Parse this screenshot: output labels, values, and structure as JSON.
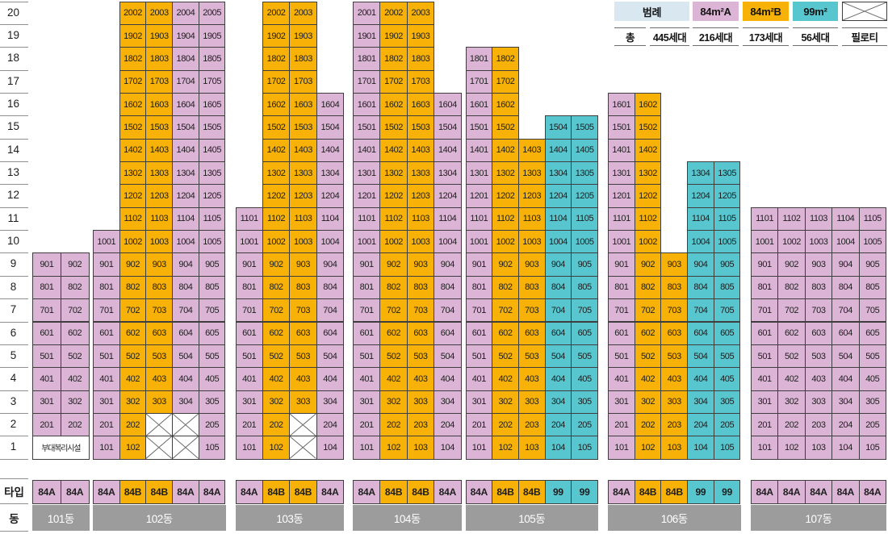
{
  "colors": {
    "type_84A": "#DCB5D6",
    "type_84B": "#F8B207",
    "type_99": "#58C6CF",
    "legend_header_bg": "#D9E7F1",
    "dong_bar_bg": "#9C9C9C",
    "grid_border": "#3E3E3E"
  },
  "legend": {
    "header_label": "범례",
    "total_label": "총",
    "total_value": "445세대",
    "items": [
      {
        "label": "84m²A",
        "type": "84A",
        "count": "216세대"
      },
      {
        "label": "84m²B",
        "type": "84B",
        "count": "173세대"
      },
      {
        "label": "99m²",
        "type": "99",
        "count": "56세대"
      },
      {
        "label": "",
        "type": "piloti",
        "count": "필로티"
      }
    ]
  },
  "floor_axis": [
    "20",
    "19",
    "18",
    "17",
    "16",
    "15",
    "14",
    "13",
    "12",
    "11",
    "10",
    "9",
    "8",
    "7",
    "6",
    "5",
    "4",
    "3",
    "2",
    "1"
  ],
  "row_labels": {
    "type": "타입",
    "dong": "동"
  },
  "buildings": [
    {
      "name": "101동",
      "ground_floor_label": "부대복리시설",
      "type_row": [
        "84A",
        "84A"
      ],
      "columns": [
        {
          "type": "84A",
          "from": 2,
          "units": [
            "201",
            "301",
            "401",
            "501",
            "601",
            "701",
            "801",
            "901"
          ]
        },
        {
          "type": "84A",
          "from": 2,
          "units": [
            "202",
            "302",
            "402",
            "502",
            "602",
            "702",
            "802",
            "902"
          ]
        }
      ]
    },
    {
      "name": "102동",
      "type_row": [
        "84A",
        "84B",
        "84B",
        "84A",
        "84A"
      ],
      "columns": [
        {
          "type": "84A",
          "from": 1,
          "units": [
            "101",
            "201",
            "301",
            "401",
            "501",
            "601",
            "701",
            "801",
            "901",
            "1001"
          ]
        },
        {
          "type": "84B",
          "from": 1,
          "units": [
            "102",
            "202",
            "302",
            "402",
            "502",
            "602",
            "702",
            "802",
            "902",
            "1002",
            "1102",
            "1202",
            "1302",
            "1402",
            "1502",
            "1602",
            "1702",
            "1802",
            "1902",
            "2002"
          ]
        },
        {
          "type": "84B",
          "from": 3,
          "piloti": [
            1,
            2
          ],
          "units": [
            "303",
            "403",
            "503",
            "603",
            "703",
            "803",
            "903",
            "1003",
            "1103",
            "1203",
            "1303",
            "1403",
            "1503",
            "1603",
            "1703",
            "1803",
            "1903",
            "2003"
          ]
        },
        {
          "type": "84A",
          "from": 3,
          "piloti": [
            1,
            2
          ],
          "units": [
            "304",
            "404",
            "504",
            "604",
            "704",
            "804",
            "904",
            "1004",
            "1104",
            "1204",
            "1304",
            "1404",
            "1504",
            "1604",
            "1704",
            "1804",
            "1904",
            "2004"
          ]
        },
        {
          "type": "84A",
          "from": 1,
          "units": [
            "105",
            "205",
            "305",
            "405",
            "505",
            "605",
            "705",
            "805",
            "905",
            "1005",
            "1105",
            "1205",
            "1305",
            "1405",
            "1505",
            "1605",
            "1705",
            "1805",
            "1905",
            "2005"
          ]
        }
      ]
    },
    {
      "name": "103동",
      "type_row": [
        "84A",
        "84B",
        "84B",
        "84A"
      ],
      "columns": [
        {
          "type": "84A",
          "from": 1,
          "units": [
            "101",
            "201",
            "301",
            "401",
            "501",
            "601",
            "701",
            "801",
            "901",
            "1001",
            "1101"
          ]
        },
        {
          "type": "84B",
          "from": 1,
          "units": [
            "102",
            "202",
            "302",
            "402",
            "502",
            "602",
            "702",
            "802",
            "902",
            "1002",
            "1102",
            "1202",
            "1302",
            "1402",
            "1502",
            "1602",
            "1702",
            "1802",
            "1902",
            "2002"
          ]
        },
        {
          "type": "84B",
          "from": 3,
          "piloti": [
            1,
            2
          ],
          "units": [
            "303",
            "403",
            "503",
            "603",
            "703",
            "803",
            "903",
            "1003",
            "1103",
            "1203",
            "1303",
            "1403",
            "1503",
            "1603",
            "1703",
            "1803",
            "1903",
            "2003"
          ]
        },
        {
          "type": "84A",
          "from": 1,
          "units": [
            "104",
            "204",
            "304",
            "404",
            "504",
            "604",
            "704",
            "804",
            "904",
            "1004",
            "1104",
            "1204",
            "1304",
            "1404",
            "1504",
            "1604"
          ]
        }
      ]
    },
    {
      "name": "104동",
      "type_row": [
        "84A",
        "84B",
        "84B",
        "84A"
      ],
      "columns": [
        {
          "type": "84A",
          "from": 1,
          "units": [
            "101",
            "201",
            "301",
            "401",
            "501",
            "601",
            "701",
            "801",
            "901",
            "1001",
            "1101",
            "1201",
            "1301",
            "1401",
            "1501",
            "1601",
            "1701",
            "1801",
            "1901",
            "2001"
          ]
        },
        {
          "type": "84B",
          "from": 1,
          "units": [
            "102",
            "202",
            "302",
            "402",
            "502",
            "602",
            "702",
            "802",
            "902",
            "1002",
            "1102",
            "1202",
            "1302",
            "1402",
            "1502",
            "1602",
            "1702",
            "1802",
            "1902",
            "2002"
          ]
        },
        {
          "type": "84B",
          "from": 1,
          "units": [
            "103",
            "203",
            "303",
            "403",
            "503",
            "603",
            "703",
            "803",
            "903",
            "1003",
            "1103",
            "1203",
            "1303",
            "1403",
            "1503",
            "1603",
            "1703",
            "1803",
            "1903",
            "2003"
          ]
        },
        {
          "type": "84A",
          "from": 1,
          "units": [
            "104",
            "204",
            "304",
            "404",
            "504",
            "604",
            "704",
            "804",
            "904",
            "1004",
            "1104",
            "1204",
            "1304",
            "1404",
            "1504",
            "1604"
          ]
        }
      ]
    },
    {
      "name": "105동",
      "type_row": [
        "84A",
        "84B",
        "84B",
        "99",
        "99"
      ],
      "columns": [
        {
          "type": "84A",
          "from": 1,
          "units": [
            "101",
            "201",
            "301",
            "401",
            "501",
            "601",
            "701",
            "801",
            "901",
            "1001",
            "1101",
            "1201",
            "1301",
            "1401",
            "1501",
            "1601",
            "1701",
            "1801"
          ]
        },
        {
          "type": "84B",
          "from": 1,
          "units": [
            "102",
            "202",
            "302",
            "402",
            "502",
            "602",
            "702",
            "802",
            "902",
            "1002",
            "1102",
            "1202",
            "1302",
            "1402",
            "1502",
            "1602",
            "1702",
            "1802"
          ]
        },
        {
          "type": "84B",
          "from": 1,
          "units": [
            "103",
            "203",
            "303",
            "403",
            "503",
            "603",
            "703",
            "803",
            "903",
            "1003",
            "1103",
            "1203",
            "1303",
            "1403"
          ]
        },
        {
          "type": "99",
          "from": 1,
          "units": [
            "104",
            "204",
            "304",
            "404",
            "504",
            "604",
            "704",
            "804",
            "904",
            "1004",
            "1104",
            "1204",
            "1304",
            "1404",
            "1504"
          ]
        },
        {
          "type": "99",
          "from": 1,
          "units": [
            "105",
            "205",
            "305",
            "405",
            "505",
            "605",
            "705",
            "805",
            "905",
            "1005",
            "1105",
            "1205",
            "1305",
            "1405",
            "1505"
          ]
        }
      ]
    },
    {
      "name": "106동",
      "type_row": [
        "84A",
        "84B",
        "84B",
        "99",
        "99"
      ],
      "columns": [
        {
          "type": "84A",
          "from": 1,
          "units": [
            "101",
            "201",
            "301",
            "401",
            "501",
            "601",
            "701",
            "801",
            "901",
            "1001",
            "1101",
            "1201",
            "1301",
            "1401",
            "1501",
            "1601"
          ]
        },
        {
          "type": "84B",
          "from": 1,
          "units": [
            "102",
            "202",
            "302",
            "402",
            "502",
            "602",
            "702",
            "802",
            "902",
            "1002",
            "1102",
            "1202",
            "1302",
            "1402",
            "1502",
            "1602"
          ]
        },
        {
          "type": "84B",
          "from": 1,
          "units": [
            "103",
            "203",
            "303",
            "403",
            "503",
            "603",
            "703",
            "803",
            "903"
          ]
        },
        {
          "type": "99",
          "from": 1,
          "units": [
            "104",
            "204",
            "304",
            "404",
            "504",
            "604",
            "704",
            "804",
            "904",
            "1004",
            "1104",
            "1204",
            "1304"
          ]
        },
        {
          "type": "99",
          "from": 1,
          "units": [
            "105",
            "205",
            "305",
            "405",
            "505",
            "605",
            "705",
            "805",
            "905",
            "1005",
            "1105",
            "1205",
            "1305"
          ]
        }
      ]
    },
    {
      "name": "107동",
      "type_row": [
        "84A",
        "84A",
        "84A",
        "84A",
        "84A"
      ],
      "columns": [
        {
          "type": "84A",
          "from": 1,
          "units": [
            "101",
            "201",
            "301",
            "401",
            "501",
            "601",
            "701",
            "801",
            "901",
            "1001",
            "1101"
          ]
        },
        {
          "type": "84A",
          "from": 1,
          "units": [
            "102",
            "202",
            "302",
            "402",
            "502",
            "602",
            "702",
            "802",
            "902",
            "1002",
            "1102"
          ]
        },
        {
          "type": "84A",
          "from": 1,
          "units": [
            "103",
            "203",
            "303",
            "403",
            "503",
            "603",
            "703",
            "803",
            "903",
            "1003",
            "1103"
          ]
        },
        {
          "type": "84A",
          "from": 1,
          "units": [
            "104",
            "204",
            "304",
            "404",
            "504",
            "604",
            "704",
            "804",
            "904",
            "1004",
            "1104"
          ]
        },
        {
          "type": "84A",
          "from": 1,
          "units": [
            "105",
            "205",
            "305",
            "405",
            "505",
            "605",
            "705",
            "805",
            "905",
            "1005",
            "1105"
          ]
        }
      ]
    }
  ]
}
